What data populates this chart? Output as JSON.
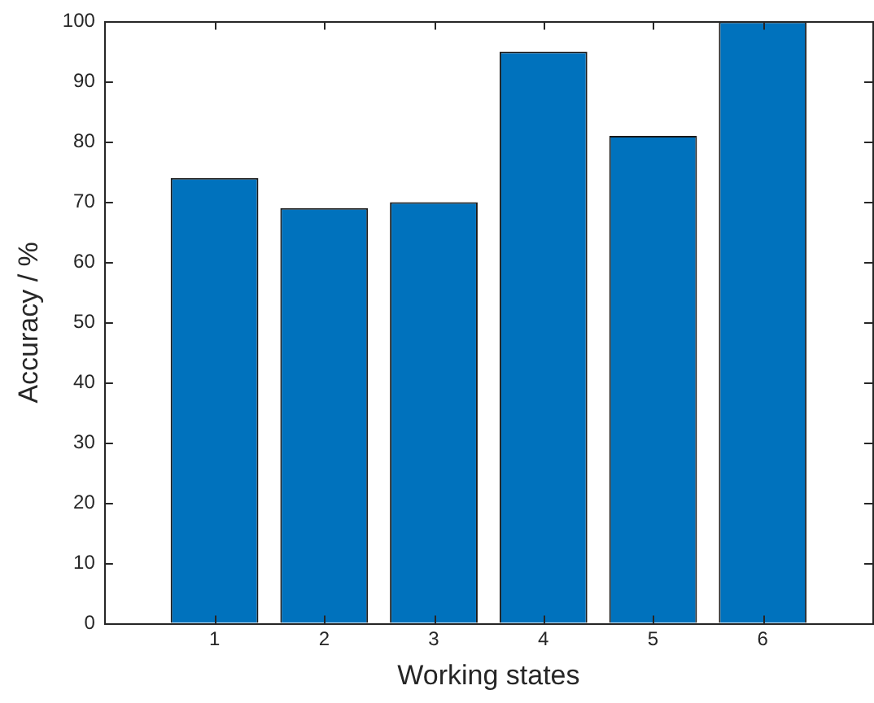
{
  "chart_data": {
    "type": "bar",
    "xlabel": "Working states",
    "ylabel": "Accuracy / %",
    "x": [
      1,
      2,
      3,
      4,
      5,
      6
    ],
    "values": [
      74,
      69,
      70,
      95,
      81,
      100
    ],
    "color": "#0072bd",
    "xlim": [
      0,
      7
    ],
    "xticks": [
      1,
      2,
      3,
      4,
      5,
      6
    ],
    "ylim": [
      0,
      100
    ],
    "yticks": [
      0,
      10,
      20,
      30,
      40,
      50,
      60,
      70,
      80,
      90,
      100
    ],
    "grid": false,
    "legend": false
  }
}
